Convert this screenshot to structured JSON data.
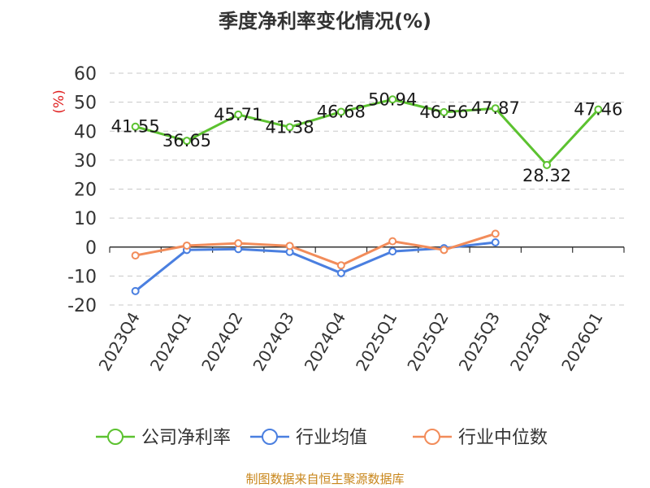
{
  "title": "季度净利率变化情况(%)",
  "source": "制图数据来自恒生聚源数据库",
  "chart_data": {
    "type": "line",
    "title": "季度净利率变化情况(%)",
    "ylabel": "(%)",
    "xlabel": "",
    "categories": [
      "2023Q4",
      "2024Q1",
      "2024Q2",
      "2024Q3",
      "2024Q4",
      "2025Q1",
      "2025Q2",
      "2025Q3",
      "2025Q4",
      "2026Q1"
    ],
    "ylim": [
      -20,
      60
    ],
    "yticks": [
      60,
      50,
      40,
      30,
      20,
      10,
      0,
      -10,
      -20
    ],
    "grid": true,
    "legend_position": "bottom",
    "series": [
      {
        "name": "公司净利率",
        "color": "#5cc230",
        "show_labels": true,
        "values": [
          41.55,
          36.65,
          45.71,
          41.38,
          46.68,
          50.94,
          46.56,
          47.87,
          28.32,
          47.46
        ]
      },
      {
        "name": "行业均值",
        "color": "#4a7fe0",
        "show_labels": false,
        "values": [
          -15.2,
          -1.0,
          -0.7,
          -1.7,
          -9.0,
          -1.5,
          -0.4,
          1.6,
          null,
          null
        ]
      },
      {
        "name": "行业中位数",
        "color": "#f28c5a",
        "show_labels": false,
        "values": [
          -2.9,
          0.5,
          1.3,
          0.4,
          -6.3,
          2.0,
          -1.0,
          4.6,
          null,
          null
        ]
      }
    ]
  }
}
